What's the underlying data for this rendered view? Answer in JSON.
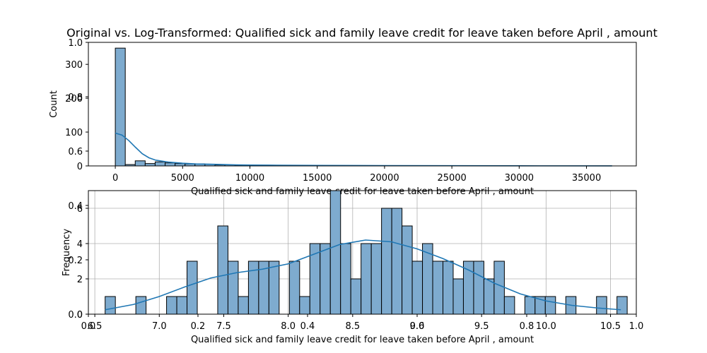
{
  "figure": {
    "title": "Original vs. Log-Transformed: Qualified sick and family leave credit for leave taken before April ,  amount",
    "stray_ticks": {
      "x_labels": [
        "0.0",
        "0.2",
        "0.4",
        "0.6",
        "0.8",
        "1.0"
      ],
      "y_labels": [
        "0.0",
        "0.2",
        "0.4",
        "0.6",
        "0.8",
        "1.0"
      ]
    }
  },
  "chart_data": [
    {
      "type": "bar",
      "id": "top",
      "title": "",
      "xlabel": "Qualified sick and family leave credit for leave taken before April ,  amount",
      "ylabel": "Count",
      "grid": false,
      "xlim": [
        -2000,
        38700
      ],
      "ylim": [
        0,
        365
      ],
      "x_ticks": [
        0,
        5000,
        10000,
        15000,
        20000,
        25000,
        30000,
        35000
      ],
      "x_tick_labels": [
        "0",
        "5000",
        "10000",
        "15000",
        "20000",
        "25000",
        "30000",
        "35000"
      ],
      "y_ticks": [
        0,
        100,
        200,
        300
      ],
      "y_tick_labels": [
        "0",
        "100",
        "200",
        "300"
      ],
      "bin_start": 0,
      "bin_width": 740,
      "values": [
        348,
        4,
        15,
        7,
        12,
        9,
        7,
        6,
        6,
        5,
        3,
        3,
        2,
        2,
        2,
        2,
        1,
        1,
        1,
        1,
        1,
        1,
        1,
        1,
        1,
        1,
        0,
        1,
        0,
        1,
        0,
        0,
        0,
        0,
        0,
        0,
        0,
        0,
        0,
        0,
        0,
        0,
        0,
        0,
        0,
        0,
        0,
        0,
        0,
        0
      ],
      "kde": {
        "x": [
          0,
          500,
          1000,
          1500,
          2000,
          2500,
          3000,
          4000,
          5000,
          6000,
          7000,
          8000,
          9000,
          10000,
          12000,
          15000,
          20000,
          25000,
          30000,
          36900
        ],
        "y": [
          97,
          91,
          75,
          55,
          36,
          24,
          17,
          11,
          8,
          6,
          5,
          4,
          3,
          2.5,
          2,
          1.5,
          1,
          0.6,
          0.3,
          0.1
        ]
      }
    },
    {
      "type": "bar",
      "id": "bottom",
      "title": "",
      "xlabel": "Qualified sick and family leave credit for leave taken before April ,  amount",
      "ylabel": "Frequency",
      "grid": true,
      "xlim": [
        6.45,
        10.7
      ],
      "ylim": [
        0,
        7
      ],
      "x_ticks": [
        6.5,
        7.0,
        7.5,
        8.0,
        8.5,
        9.0,
        9.5,
        10.0,
        10.5
      ],
      "x_tick_labels": [
        "6.5",
        "7.0",
        "7.5",
        "8.0",
        "8.5",
        "9.0",
        "9.5",
        "10.0",
        "10.5"
      ],
      "y_ticks": [
        0,
        2,
        4,
        6
      ],
      "y_tick_labels": [
        "0",
        "2",
        "4",
        "6"
      ],
      "bin_start": 6.58,
      "bin_width": 0.0794,
      "values": [
        1,
        0,
        0,
        1,
        0,
        0,
        1,
        1,
        3,
        0,
        0,
        5,
        3,
        1,
        3,
        3,
        3,
        0,
        3,
        1,
        4,
        4,
        7,
        4,
        2,
        4,
        4,
        6,
        6,
        5,
        3,
        4,
        3,
        3,
        2,
        3,
        3,
        2,
        3,
        1,
        0,
        1,
        1,
        1,
        0,
        1,
        0,
        0,
        1,
        0,
        1
      ],
      "kde": {
        "x": [
          6.58,
          6.8,
          7.0,
          7.2,
          7.4,
          7.6,
          7.8,
          8.0,
          8.2,
          8.4,
          8.6,
          8.8,
          9.0,
          9.2,
          9.4,
          9.6,
          9.8,
          10.0,
          10.2,
          10.4,
          10.58
        ],
        "y": [
          0.25,
          0.55,
          1.0,
          1.55,
          2.05,
          2.35,
          2.55,
          2.85,
          3.4,
          3.95,
          4.2,
          4.1,
          3.7,
          3.15,
          2.5,
          1.75,
          1.15,
          0.75,
          0.5,
          0.35,
          0.25
        ]
      }
    }
  ],
  "colors": {
    "bar_fill": "#7eabcf",
    "bar_edge": "#000000",
    "kde_line": "#1f77b4",
    "grid": "#b0b0b0",
    "axes": "#000000"
  }
}
